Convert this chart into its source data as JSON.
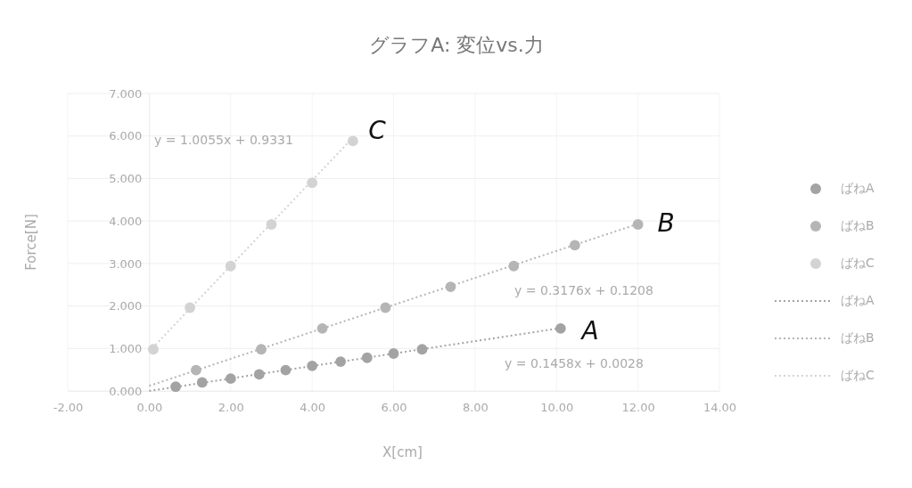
{
  "chart_data": {
    "type": "scatter",
    "title": "グラフA: 変位vs.力",
    "xlabel": "X[cm]",
    "ylabel": "Force[N]",
    "xlim": [
      -2,
      14
    ],
    "xticks": [
      {
        "value": -2,
        "label": "-2.00"
      },
      {
        "value": 0,
        "label": "0.00"
      },
      {
        "value": 2,
        "label": "2.00"
      },
      {
        "value": 4,
        "label": "4.00"
      },
      {
        "value": 6,
        "label": "6.00"
      },
      {
        "value": 8,
        "label": "8.00"
      },
      {
        "value": 10,
        "label": "10.00"
      },
      {
        "value": 12,
        "label": "12.00"
      },
      {
        "value": 14,
        "label": "14.00"
      }
    ],
    "ylim": [
      0,
      7
    ],
    "yticks": [
      {
        "value": 0,
        "label": "0.000"
      },
      {
        "value": 1,
        "label": "1.000"
      },
      {
        "value": 2,
        "label": "2.000"
      },
      {
        "value": 3,
        "label": "3.000"
      },
      {
        "value": 4,
        "label": "4.000"
      },
      {
        "value": 5,
        "label": "5.000"
      },
      {
        "value": 6,
        "label": "6.000"
      },
      {
        "value": 7,
        "label": "7.000"
      }
    ],
    "grid": true,
    "legend": "right",
    "marker": "circle",
    "series": [
      {
        "name": "ばねA",
        "color": "#a3a3a3",
        "x": [
          0.65,
          1.3,
          2.0,
          2.7,
          3.35,
          4.0,
          4.7,
          5.35,
          6.0,
          6.7,
          10.1
        ],
        "values": [
          0.1,
          0.2,
          0.29,
          0.39,
          0.49,
          0.59,
          0.69,
          0.78,
          0.88,
          0.98,
          1.47
        ]
      },
      {
        "name": "ばねB",
        "color": "#b5b5b5",
        "x": [
          1.15,
          2.75,
          4.25,
          5.8,
          7.4,
          8.95,
          10.45,
          12.0
        ],
        "values": [
          0.49,
          0.98,
          1.47,
          1.96,
          2.45,
          2.94,
          3.43,
          3.92
        ]
      },
      {
        "name": "ばねC",
        "color": "#d3d3d3",
        "x": [
          0.1,
          1.0,
          2.0,
          3.0,
          4.0,
          5.0
        ],
        "values": [
          0.98,
          1.96,
          2.94,
          3.92,
          4.9,
          5.88
        ]
      },
      {
        "name": "ばねA",
        "type": "line",
        "line_style": "dotted",
        "marker": "none",
        "color": "#a3a3a3",
        "x": [
          0,
          10.1
        ],
        "values": [
          0.0,
          1.48
        ]
      },
      {
        "name": "ばねB",
        "type": "line",
        "line_style": "dotted",
        "marker": "none",
        "color": "#b5b5b5",
        "x": [
          0,
          12.0
        ],
        "values": [
          0.12,
          3.93
        ]
      },
      {
        "name": "ばねC",
        "type": "line",
        "line_style": "dotted",
        "marker": "none",
        "color": "#d3d3d3",
        "x": [
          0,
          5.0
        ],
        "values": [
          0.93,
          5.96
        ]
      }
    ],
    "annotations": [
      "y = 1.0055x + 0.9331",
      "y = 0.3176x + 0.1208",
      "y = 0.1458x + 0.0028",
      "C",
      "B",
      "A"
    ]
  }
}
